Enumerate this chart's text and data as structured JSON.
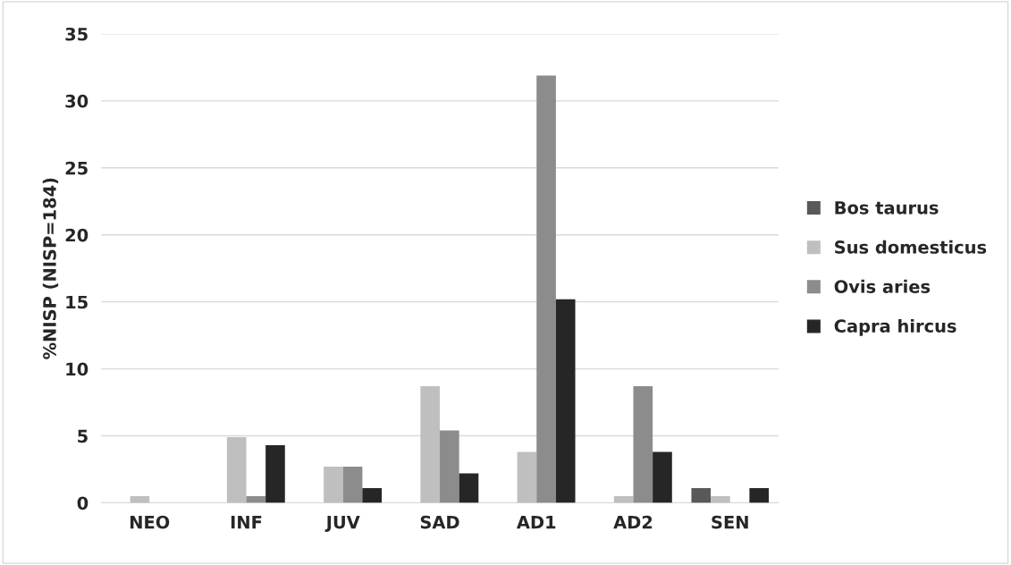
{
  "chart_data": {
    "type": "bar",
    "ylabel": "%NISP (NISP=184)",
    "categories": [
      "NEO",
      "INF",
      "JUV",
      "SAD",
      "AD1",
      "AD2",
      "SEN"
    ],
    "series": [
      {
        "name": "Bos taurus",
        "color": "#595959",
        "values": [
          null,
          null,
          null,
          null,
          null,
          null,
          1.1
        ]
      },
      {
        "name": "Sus domesticus",
        "color": "#bfbfbf",
        "values": [
          0.5,
          4.9,
          2.7,
          8.7,
          3.8,
          0.5,
          0.5
        ]
      },
      {
        "name": "Ovis aries",
        "color": "#8c8c8c",
        "values": [
          null,
          0.5,
          2.7,
          5.4,
          31.9,
          8.7,
          null
        ]
      },
      {
        "name": "Capra hircus",
        "color": "#262626",
        "values": [
          null,
          4.3,
          1.1,
          2.2,
          15.2,
          3.8,
          1.1
        ]
      }
    ],
    "ylim": [
      0,
      35
    ],
    "yticks": [
      0,
      5,
      10,
      15,
      20,
      25,
      30,
      35
    ],
    "grid": "y",
    "legend": "right"
  }
}
